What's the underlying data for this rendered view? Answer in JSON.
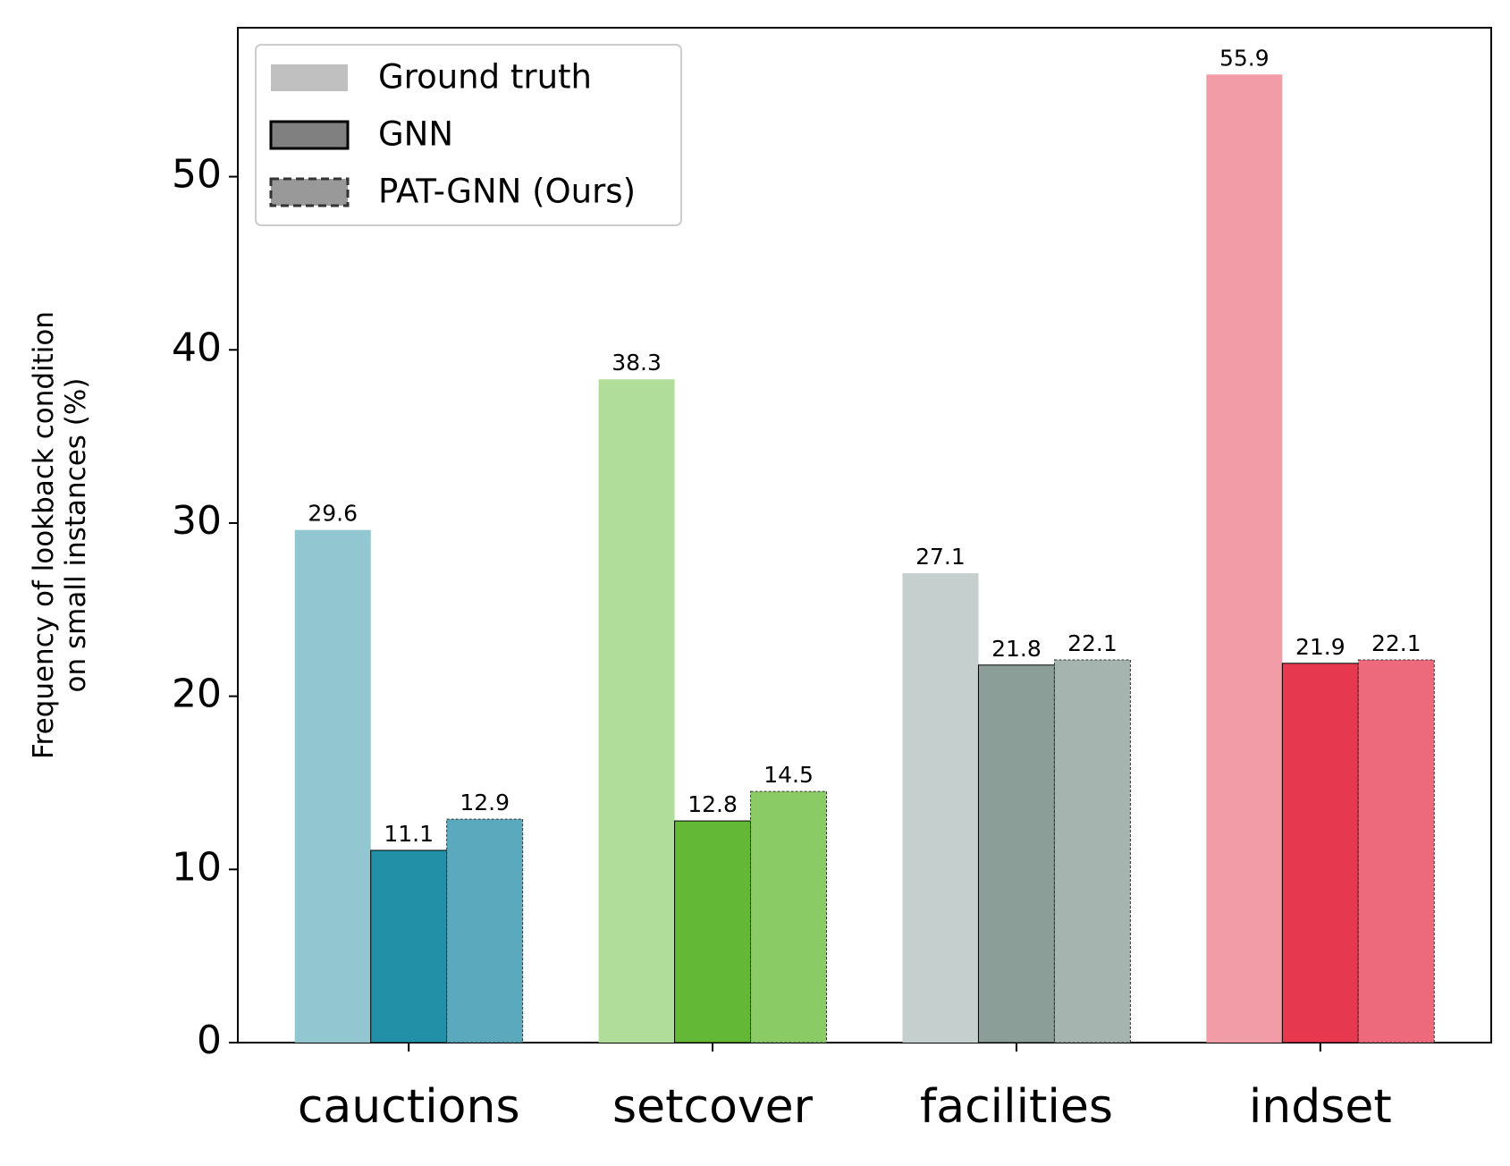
{
  "chart_data": {
    "type": "bar",
    "ylabel": [
      "Frequency of lookback condition",
      "on small instances (%)"
    ],
    "categories": [
      "cauctions",
      "setcover",
      "facilities",
      "indset"
    ],
    "series": [
      {
        "name": "Ground truth",
        "color": "#c0c0c0",
        "edge": "none",
        "colors": [
          "#92c6d1",
          "#b0dd99",
          "#c5cfcd",
          "#f29ca7"
        ],
        "values": [
          29.6,
          38.3,
          27.1,
          55.9
        ]
      },
      {
        "name": "GNN",
        "color": "#808080",
        "edge": "solid",
        "colors": [
          "#2290a6",
          "#63b935",
          "#8c9e98",
          "#e6384f"
        ],
        "values": [
          11.1,
          12.8,
          21.8,
          21.9
        ]
      },
      {
        "name": "PAT-GNN (Ours)",
        "color": "#999999",
        "edge": "dashed",
        "colors": [
          "#5aa9bc",
          "#8acb66",
          "#a6b4b0",
          "#ec6a7b"
        ],
        "values": [
          12.9,
          14.5,
          22.1,
          22.1
        ]
      }
    ],
    "ylim": [
      0,
      58.6
    ],
    "yticks": [
      0,
      10,
      20,
      30,
      40,
      50
    ],
    "legend": "upper left"
  }
}
